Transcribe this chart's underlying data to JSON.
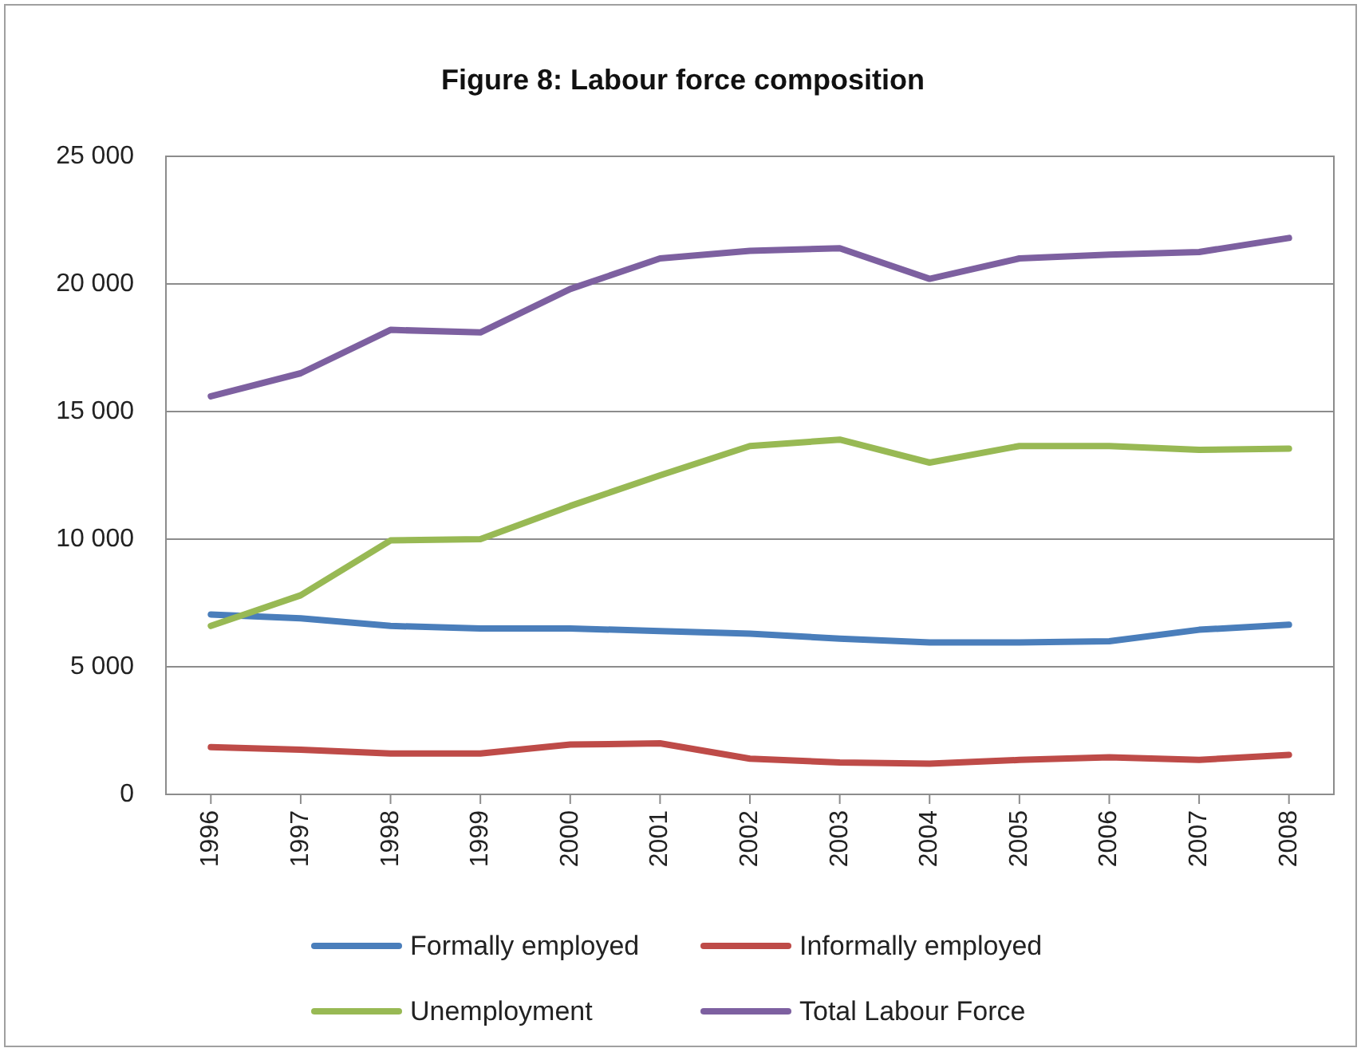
{
  "chart_data": {
    "type": "line",
    "title": "Figure 8: Labour force composition",
    "categories": [
      "1996",
      "1997",
      "1998",
      "1999",
      "2000",
      "2001",
      "2002",
      "2003",
      "2004",
      "2005",
      "2006",
      "2007",
      "2008"
    ],
    "series": [
      {
        "name": "Formally employed",
        "color": "#4a7ebb",
        "values": [
          7050,
          6900,
          6600,
          6500,
          6500,
          6400,
          6300,
          6100,
          5950,
          5950,
          6000,
          6450,
          6650
        ]
      },
      {
        "name": "Informally employed",
        "color": "#be4b48",
        "values": [
          1850,
          1750,
          1600,
          1600,
          1950,
          2000,
          1400,
          1250,
          1200,
          1350,
          1450,
          1350,
          1550
        ]
      },
      {
        "name": "Unemployment",
        "color": "#98b954",
        "values": [
          6600,
          7800,
          9950,
          10000,
          11300,
          12500,
          13650,
          13900,
          13000,
          13650,
          13650,
          13500,
          13550
        ]
      },
      {
        "name": "Total Labour Force",
        "color": "#7d60a0",
        "values": [
          15600,
          16500,
          18200,
          18100,
          19800,
          21000,
          21300,
          21400,
          20200,
          21000,
          21150,
          21250,
          21800
        ]
      }
    ],
    "ylim": [
      0,
      25000
    ],
    "yticks": [
      0,
      {
        "value": 5000,
        "label": "5 000"
      },
      {
        "value": 10000,
        "label": "10 000"
      },
      {
        "value": 15000,
        "label": "15 000"
      },
      {
        "value": 20000,
        "label": "20 000"
      },
      {
        "value": 25000,
        "label": "25 000"
      }
    ],
    "grid": "y",
    "legend": "bottom"
  }
}
